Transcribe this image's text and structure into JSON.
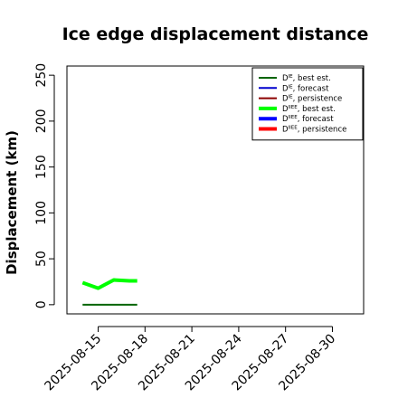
{
  "chart_data": {
    "type": "line",
    "title": "Ice edge displacement distance",
    "xlabel": "",
    "ylabel": "Displacement (km)",
    "x_ticks": [
      "2025-08-15",
      "2025-08-18",
      "2025-08-21",
      "2025-08-24",
      "2025-08-27",
      "2025-08-30"
    ],
    "highlight_tick": "2025-08-21",
    "highlight_color": "#228B22",
    "xlim": [
      "2025-08-13",
      "2025-09-01"
    ],
    "y_ticks": [
      0,
      50,
      100,
      150,
      200,
      250
    ],
    "ylim": [
      -10,
      260
    ],
    "grid": false,
    "legend_position": "top-right",
    "series": [
      {
        "name_main": "D",
        "name_sup": "IE",
        "name_rest": ", best est.",
        "color": "#006400",
        "thick": false,
        "x": [
          "2025-08-14",
          "2025-08-15",
          "2025-08-16",
          "2025-08-17",
          "2025-08-17T12:00"
        ],
        "y": [
          0,
          0,
          0,
          0,
          0
        ]
      },
      {
        "name_main": "D",
        "name_sup": "IE",
        "name_rest": ", forecast",
        "color": "#0000cd",
        "thick": false,
        "x": [],
        "y": []
      },
      {
        "name_main": "D",
        "name_sup": "IE",
        "name_rest": ", persistence",
        "color": "#8b0000",
        "thick": false,
        "x": [],
        "y": []
      },
      {
        "name_main": "D",
        "name_sup": "IIEE",
        "name_rest": ", best est.",
        "color": "#00ff00",
        "thick": true,
        "x": [
          "2025-08-14",
          "2025-08-15",
          "2025-08-16",
          "2025-08-17",
          "2025-08-17T12:00"
        ],
        "y": [
          24,
          18,
          27,
          26,
          26
        ]
      },
      {
        "name_main": "D",
        "name_sup": "IIEE",
        "name_rest": ", forecast",
        "color": "#0000ff",
        "thick": true,
        "x": [],
        "y": []
      },
      {
        "name_main": "D",
        "name_sup": "IIEE",
        "name_rest": ", persistence",
        "color": "#ff0000",
        "thick": true,
        "x": [],
        "y": []
      }
    ]
  }
}
